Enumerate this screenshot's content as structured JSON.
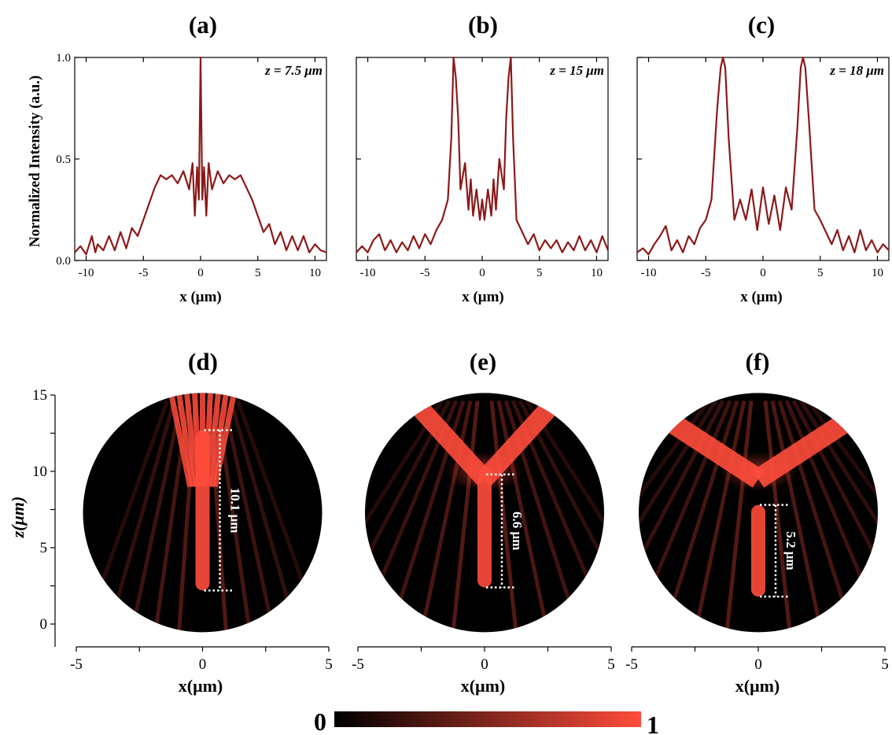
{
  "colors": {
    "line": "#8b1a1a",
    "axis": "#000000",
    "map_low": "#000000",
    "map_high": "#ff4c3c",
    "marker": "#ffffff"
  },
  "chart_data": [
    {
      "type": "line",
      "panel": "(a)",
      "annotation": "z = 7.5 μm",
      "xlabel": "x (μm)",
      "ylabel": "Normalized Intensity (a.u.)",
      "xlim": [
        -11,
        11
      ],
      "ylim": [
        0,
        1
      ],
      "xticks": [
        "-10",
        "-5",
        "0",
        "5",
        "10"
      ],
      "yticks": [
        "0.0",
        "0.5",
        "1.0"
      ],
      "grid": false,
      "x": [
        -11,
        -10.5,
        -10,
        -9.5,
        -9.2,
        -9,
        -8.5,
        -8,
        -7.5,
        -7,
        -6.5,
        -6,
        -5.5,
        -5,
        -4.5,
        -4,
        -3.5,
        -3,
        -2.5,
        -2,
        -1.5,
        -1,
        -0.7,
        -0.5,
        -0.3,
        -0.15,
        0,
        0.15,
        0.3,
        0.5,
        0.7,
        1,
        1.5,
        2,
        2.5,
        3,
        3.5,
        4,
        4.5,
        5,
        5.5,
        6,
        6.5,
        7,
        7.5,
        8,
        8.5,
        9,
        9.5,
        10,
        10.5,
        11
      ],
      "y": [
        0.04,
        0.07,
        0.03,
        0.12,
        0.04,
        0.08,
        0.05,
        0.12,
        0.05,
        0.14,
        0.06,
        0.16,
        0.12,
        0.2,
        0.28,
        0.36,
        0.42,
        0.4,
        0.42,
        0.38,
        0.44,
        0.35,
        0.48,
        0.22,
        0.46,
        0.3,
        1.0,
        0.3,
        0.46,
        0.22,
        0.48,
        0.35,
        0.44,
        0.38,
        0.42,
        0.4,
        0.42,
        0.36,
        0.3,
        0.22,
        0.14,
        0.18,
        0.08,
        0.14,
        0.05,
        0.12,
        0.05,
        0.12,
        0.04,
        0.08,
        0.05,
        0.04
      ]
    },
    {
      "type": "line",
      "panel": "(b)",
      "annotation": "z = 15 μm",
      "xlabel": "x (μm)",
      "ylabel": "",
      "xlim": [
        -11,
        11
      ],
      "ylim": [
        0,
        1
      ],
      "xticks": [
        "-10",
        "-5",
        "0",
        "5",
        "10"
      ],
      "yticks": [],
      "grid": false,
      "x": [
        -11,
        -10.5,
        -10,
        -9.5,
        -9,
        -8.5,
        -8,
        -7.5,
        -7,
        -6.5,
        -6,
        -5.5,
        -5,
        -4.5,
        -4,
        -3.5,
        -3,
        -2.7,
        -2.5,
        -2.3,
        -2.1,
        -1.9,
        -1.5,
        -1.2,
        -1,
        -0.8,
        -0.5,
        -0.2,
        0,
        0.2,
        0.5,
        0.8,
        1,
        1.2,
        1.5,
        1.9,
        2.1,
        2.3,
        2.5,
        2.7,
        3,
        3.5,
        4,
        4.5,
        5,
        5.5,
        6,
        6.5,
        7,
        7.5,
        8,
        8.5,
        9,
        9.5,
        10,
        10.5,
        11
      ],
      "y": [
        0.04,
        0.07,
        0.04,
        0.1,
        0.13,
        0.05,
        0.1,
        0.04,
        0.09,
        0.05,
        0.12,
        0.06,
        0.13,
        0.08,
        0.15,
        0.2,
        0.3,
        0.6,
        1.0,
        0.9,
        0.7,
        0.35,
        0.48,
        0.25,
        0.4,
        0.22,
        0.35,
        0.2,
        0.3,
        0.2,
        0.35,
        0.22,
        0.4,
        0.25,
        0.5,
        0.35,
        0.7,
        0.9,
        1.0,
        0.6,
        0.2,
        0.14,
        0.08,
        0.13,
        0.05,
        0.1,
        0.06,
        0.1,
        0.04,
        0.09,
        0.05,
        0.12,
        0.05,
        0.1,
        0.04,
        0.12,
        0.05
      ]
    },
    {
      "type": "line",
      "panel": "(c)",
      "annotation": "z = 18 μm",
      "xlabel": "x (μm)",
      "ylabel": "",
      "xlim": [
        -11,
        11
      ],
      "ylim": [
        0,
        1
      ],
      "xticks": [
        "-10",
        "-5",
        "0",
        "5",
        "10"
      ],
      "yticks": [],
      "grid": false,
      "x": [
        -11,
        -10.5,
        -10,
        -9.5,
        -9,
        -8.5,
        -8,
        -7.5,
        -7,
        -6.5,
        -6,
        -5.5,
        -5,
        -4.5,
        -4,
        -3.7,
        -3.5,
        -3.3,
        -3,
        -2.5,
        -2,
        -1.5,
        -1,
        -0.5,
        0,
        0.5,
        1,
        1.5,
        2,
        2.5,
        3,
        3.3,
        3.5,
        3.7,
        4,
        4.5,
        5,
        5.5,
        6,
        6.5,
        7,
        7.5,
        8,
        8.5,
        9,
        9.5,
        10,
        10.5,
        11
      ],
      "y": [
        0.04,
        0.06,
        0.03,
        0.08,
        0.12,
        0.17,
        0.05,
        0.1,
        0.04,
        0.12,
        0.08,
        0.16,
        0.2,
        0.3,
        0.75,
        0.95,
        1.0,
        0.95,
        0.6,
        0.2,
        0.3,
        0.2,
        0.35,
        0.15,
        0.36,
        0.18,
        0.32,
        0.15,
        0.36,
        0.25,
        0.65,
        0.95,
        1.0,
        0.95,
        0.7,
        0.25,
        0.2,
        0.14,
        0.08,
        0.15,
        0.05,
        0.12,
        0.04,
        0.15,
        0.05,
        0.1,
        0.04,
        0.08,
        0.05
      ]
    },
    {
      "type": "heatmap",
      "panel": "(d)",
      "xlabel": "x(μm)",
      "ylabel": "z(μm)",
      "xlim": [
        -5,
        5
      ],
      "ylim": [
        -1,
        15
      ],
      "xticks": [
        "-5",
        "0",
        "5"
      ],
      "yticks": [
        "0",
        "5",
        "10",
        "15"
      ],
      "focal_length_label": "10.1 μm",
      "focal_range_z": [
        2.2,
        12.7
      ]
    },
    {
      "type": "heatmap",
      "panel": "(e)",
      "xlabel": "x(μm)",
      "ylabel": "",
      "xlim": [
        -5,
        5
      ],
      "ylim": [
        -1,
        15
      ],
      "xticks": [
        "-5",
        "0",
        "5"
      ],
      "yticks": [],
      "focal_length_label": "6.6 μm",
      "focal_range_z": [
        2.4,
        9.8
      ]
    },
    {
      "type": "heatmap",
      "panel": "(f)",
      "xlabel": "x(μm)",
      "ylabel": "",
      "xlim": [
        -5,
        5
      ],
      "ylim": [
        -1,
        15
      ],
      "xticks": [
        "-5",
        "0",
        "5"
      ],
      "yticks": [],
      "focal_length_label": "5.2 μm",
      "focal_range_z": [
        1.8,
        7.8
      ]
    }
  ],
  "colorbar": {
    "min_label": "0",
    "max_label": "1"
  }
}
